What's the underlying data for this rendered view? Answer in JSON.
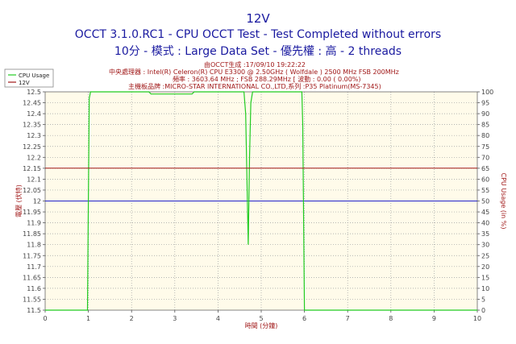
{
  "header": {
    "title": "12V",
    "subtitle1": "OCCT 3.1.0.RC1 - CPU OCCT Test - Test Completed without errors",
    "subtitle2": "10分 - 模式 : Large Data Set - 優先權 : 高 - 2 threads"
  },
  "info": {
    "line1": "由OCCT生成 :17/09/10 19:22:22",
    "line2": "中央處理器 : Intel(R) Celeron(R) CPU E3300 @ 2.50GHz ( Wolfdale ) 2500 MHz FSB 200MHz",
    "line3": "頻率 : 3603.64 MHz ; FSB 288.29MHz [ 波動 : 0.00 ( 0.00%)",
    "line4": "主機板品牌 :MICRO-STAR INTERNATIONAL CO.,LTD,系列 :P35 Platinum(MS-7345)"
  },
  "colors": {
    "cpu": "#22cc22",
    "volt": "#a01818",
    "ref": "#2222cc",
    "plot_bg": "#fffbea",
    "grid": "#9e9e9e"
  },
  "chart_data": {
    "type": "line",
    "xlabel": "時間 (分鐘)",
    "ylabel_left": "電壓 (伏特)",
    "ylabel_right": "CPU Usage (in %)",
    "xlim": [
      0,
      10
    ],
    "ylim_left": [
      11.5,
      12.5
    ],
    "ylim_right": [
      0,
      100
    ],
    "x_ticks": [
      "0",
      "1",
      "2",
      "3",
      "4",
      "5",
      "6",
      "7",
      "8",
      "9",
      "10"
    ],
    "y_ticks_left": [
      "12.5",
      "12.45",
      "12.4",
      "12.35",
      "12.3",
      "12.25",
      "12.2",
      "12.15",
      "12.1",
      "12.05",
      "12",
      "11.95",
      "11.9",
      "11.85",
      "11.8",
      "11.75",
      "11.7",
      "11.65",
      "11.6",
      "11.55",
      "11.5"
    ],
    "y_ticks_right": [
      "100",
      "95",
      "90",
      "85",
      "80",
      "75",
      "70",
      "65",
      "60",
      "55",
      "50",
      "45",
      "40",
      "35",
      "30",
      "25",
      "20",
      "15",
      "10",
      "5",
      "0"
    ],
    "grid": true,
    "legend": "top-left",
    "series": [
      {
        "name": "CPU Usage",
        "axis": "right",
        "x": [
          0,
          0.98,
          1.0,
          1.02,
          1.05,
          1.08,
          2.0,
          2.4,
          2.45,
          3.4,
          3.45,
          4.6,
          4.64,
          4.67,
          4.7,
          4.73,
          4.76,
          4.8,
          5.0,
          5.94,
          5.96,
          6.0,
          6.02,
          10.0
        ],
        "values": [
          0,
          0,
          50,
          97,
          100,
          100,
          100,
          100,
          99,
          99,
          100,
          100,
          90,
          60,
          30,
          70,
          95,
          100,
          100,
          100,
          85,
          0,
          0,
          0
        ]
      },
      {
        "name": "12V",
        "axis": "left",
        "x": [
          0,
          10
        ],
        "values": [
          12.15,
          12.15
        ]
      }
    ],
    "reference_line": {
      "value": 12.0,
      "axis": "left"
    }
  }
}
